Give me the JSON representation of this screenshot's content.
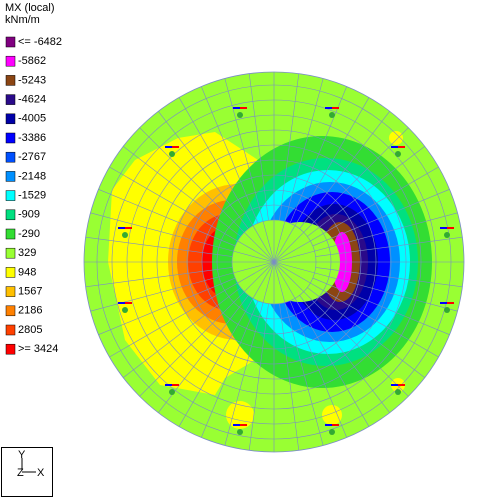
{
  "legend": {
    "title": "MX (local)",
    "unit": "kNm/m",
    "entries": [
      {
        "label": "<= -6482",
        "color": "#800080"
      },
      {
        "label": "-5862",
        "color": "#ff00ff"
      },
      {
        "label": "-5243",
        "color": "#8b4513"
      },
      {
        "label": "-4624",
        "color": "#2a0a8a"
      },
      {
        "label": "-4005",
        "color": "#0000a8"
      },
      {
        "label": "-3386",
        "color": "#0000ff"
      },
      {
        "label": "-2767",
        "color": "#0050ff"
      },
      {
        "label": "-2148",
        "color": "#0090ff"
      },
      {
        "label": "-1529",
        "color": "#00ffff"
      },
      {
        "label": "-909",
        "color": "#00e080"
      },
      {
        "label": "-290",
        "color": "#33dd33"
      },
      {
        "label": "329",
        "color": "#99ff33"
      },
      {
        "label": "948",
        "color": "#ffff00"
      },
      {
        "label": "1567",
        "color": "#ffc000"
      },
      {
        "label": "2186",
        "color": "#ff8000"
      },
      {
        "label": "2805",
        "color": "#ff4000"
      },
      {
        "label": ">= 3424",
        "color": "#ff0000"
      }
    ]
  },
  "axes_icon": {
    "y": "Y",
    "z": "Z",
    "x": "X"
  }
}
